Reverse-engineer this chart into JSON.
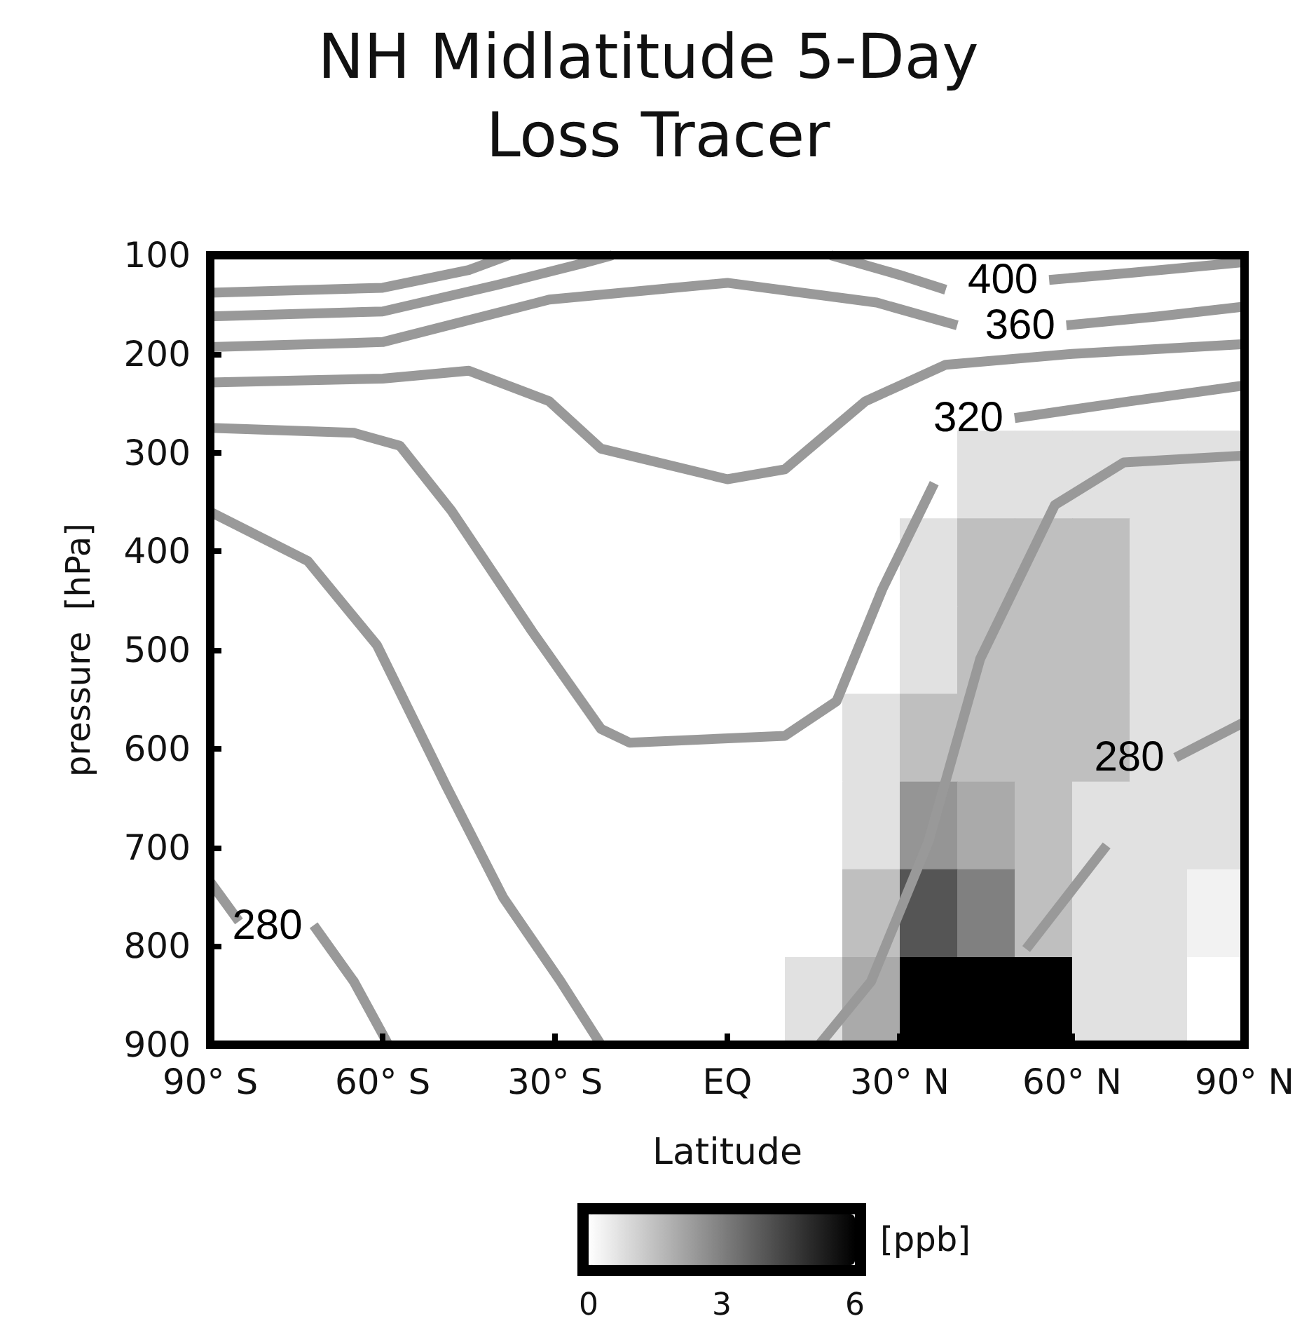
{
  "chart_data": {
    "type": "heatmap",
    "title": "NH Midlatitude 5-Day Loss Tracer",
    "xlabel": "Latitude",
    "ylabel": "pressure  [hPa]",
    "clabel": "[ppb]",
    "x": [
      -85,
      -75,
      -65,
      -55,
      -45,
      -35,
      -25,
      -15,
      -5,
      5,
      15,
      25,
      35,
      45,
      55,
      65,
      75,
      85
    ],
    "cells": [
      [
        0,
        0,
        0,
        0,
        0,
        0,
        0,
        0,
        0,
        0,
        0,
        0,
        0,
        0,
        0,
        0,
        0,
        0
      ],
      [
        0,
        0,
        0,
        0,
        0,
        0,
        0,
        0,
        0,
        0,
        0,
        0,
        0,
        0,
        0,
        0,
        0,
        0
      ],
      [
        0,
        0,
        0,
        0,
        0,
        0,
        0,
        0,
        0,
        0,
        0,
        0,
        0,
        0.7,
        0.7,
        0.7,
        0.7,
        0.7
      ],
      [
        0,
        0,
        0,
        0,
        0,
        0,
        0,
        0,
        0,
        0,
        0,
        0,
        0.7,
        1.5,
        1.5,
        1.5,
        0.7,
        0.7
      ],
      [
        0,
        0,
        0,
        0,
        0,
        0,
        0,
        0,
        0,
        0,
        0,
        0,
        0.7,
        1.5,
        1.5,
        1.5,
        0.7,
        0.7
      ],
      [
        0,
        0,
        0,
        0,
        0,
        0,
        0,
        0,
        0,
        0,
        0,
        0.7,
        1.5,
        1.5,
        1.5,
        1.5,
        0.7,
        0.7
      ],
      [
        0,
        0,
        0,
        0,
        0,
        0,
        0,
        0,
        0,
        0,
        0,
        0.7,
        2.5,
        2,
        1.5,
        0.7,
        0.7,
        0.7
      ],
      [
        0,
        0,
        0,
        0,
        0,
        0,
        0,
        0,
        0,
        0,
        0,
        1.5,
        4,
        3,
        1.5,
        0.7,
        0.7,
        0.3
      ],
      [
        0,
        0,
        0,
        0,
        0,
        0,
        0,
        0,
        0,
        0,
        0.7,
        2,
        6,
        6,
        6,
        0.7,
        0.7,
        0
      ]
    ],
    "clim": [
      0,
      6
    ],
    "cticks": [
      0,
      3,
      6
    ],
    "xlim": [
      -90,
      90
    ],
    "xticks": [
      {
        "value": -90,
        "label": "90° S"
      },
      {
        "value": -60,
        "label": "60° S"
      },
      {
        "value": -30,
        "label": "30° S"
      },
      {
        "value": 0,
        "label": "EQ"
      },
      {
        "value": 30,
        "label": "30° N"
      },
      {
        "value": 60,
        "label": "60° N"
      },
      {
        "value": 90,
        "label": "90° N"
      }
    ],
    "ylim": [
      900,
      100
    ],
    "yticks": [
      100,
      200,
      300,
      400,
      500,
      600,
      700,
      800,
      900
    ],
    "series": [
      {
        "type": "line",
        "color": "#999999",
        "x": [
          -90,
          -60,
          -45,
          -38
        ],
        "values": [
          138,
          133,
          115,
          100
        ]
      },
      {
        "type": "line",
        "color": "#999999",
        "x": [
          18,
          30,
          38
        ],
        "values": [
          100,
          120,
          135
        ]
      },
      {
        "type": "line",
        "name": "400",
        "color": "#999999",
        "x": [
          56,
          70,
          90
        ],
        "values": [
          125,
          118,
          107
        ]
      },
      {
        "type": "line",
        "color": "#999999",
        "x": [
          -90,
          -60,
          -40,
          -25,
          -20
        ],
        "values": [
          162,
          157,
          130,
          108,
          100
        ]
      },
      {
        "type": "line",
        "color": "#999999",
        "x": [
          -90,
          -60,
          -31,
          0,
          26,
          40
        ],
        "values": [
          193,
          188,
          145,
          128,
          148,
          171
        ]
      },
      {
        "type": "line",
        "name": "360",
        "color": "#999999",
        "x": [
          59,
          75,
          90
        ],
        "values": [
          171,
          162,
          152
        ]
      },
      {
        "type": "line",
        "color": "#999999",
        "x": [
          -90,
          -60,
          -45,
          -31,
          -22,
          0,
          10,
          24,
          38,
          60,
          90
        ],
        "values": [
          229,
          225,
          217,
          248,
          296,
          327,
          317,
          248,
          211,
          200,
          190
        ]
      },
      {
        "type": "line",
        "color": "#999999",
        "x": [
          -90,
          -65,
          -57,
          -48,
          -34,
          -22,
          -17,
          10,
          19,
          27,
          36
        ],
        "values": [
          275,
          280,
          293,
          359,
          481,
          580,
          594,
          587,
          552,
          438,
          331
        ]
      },
      {
        "type": "line",
        "name": "320",
        "color": "#999999",
        "x": [
          50,
          70,
          90
        ],
        "values": [
          265,
          248,
          232
        ]
      },
      {
        "type": "line",
        "color": "#999999",
        "x": [
          -90,
          -73,
          -61,
          -49,
          -39,
          -29,
          -22
        ],
        "values": [
          360,
          410,
          495,
          637,
          751,
          836,
          900
        ]
      },
      {
        "type": "line",
        "color": "#999999",
        "x": [
          16,
          25,
          35,
          44,
          57,
          69,
          90
        ],
        "values": [
          900,
          836,
          694,
          509,
          353,
          310,
          303
        ]
      },
      {
        "type": "line",
        "color": "#999999",
        "x": [
          -90,
          -85
        ],
        "values": [
          735,
          775
        ]
      },
      {
        "type": "line",
        "name": "280",
        "color": "#999999",
        "x": [
          -72,
          -65,
          -59
        ],
        "values": [
          779,
          836,
          900
        ]
      },
      {
        "type": "line",
        "color": "#999999",
        "x": [
          52,
          66
        ],
        "values": [
          803,
          698
        ]
      },
      {
        "type": "line",
        "name": "280",
        "color": "#999999",
        "x": [
          78,
          90
        ],
        "values": [
          609,
          573
        ]
      }
    ],
    "grid": false,
    "legend": false,
    "marker": "none",
    "line_style": "solid"
  }
}
